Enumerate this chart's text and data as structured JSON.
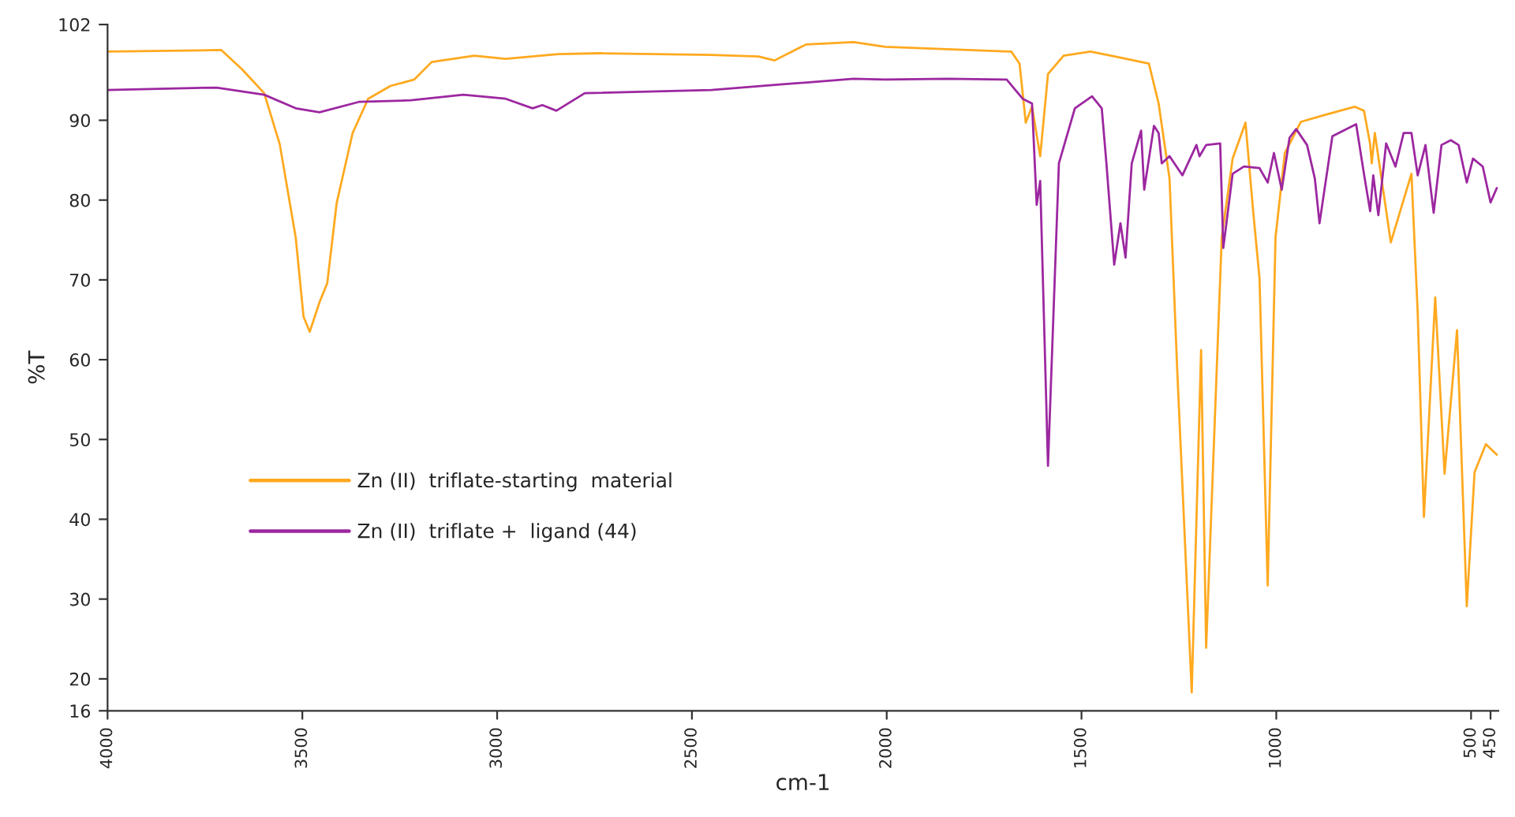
{
  "chart_data": {
    "type": "line",
    "xlabel": "cm-1",
    "ylabel": "%T",
    "xlim": [
      4000,
      430
    ],
    "xticks": [
      4000,
      3500,
      3000,
      2500,
      2000,
      1500,
      1000,
      500,
      450
    ],
    "ylim": [
      16,
      102
    ],
    "yticks": [
      16,
      20,
      30,
      40,
      50,
      60,
      70,
      80,
      90,
      102
    ],
    "grid": false,
    "legend": "lower left",
    "marker": "none",
    "line_style": "solid",
    "series": [
      {
        "name": "Zn (II)  triflate-starting  material",
        "color": "#ffa91f",
        "x": [
          4000,
          3708,
          3655,
          3598,
          3558,
          3517,
          3497,
          3481,
          3456,
          3436,
          3412,
          3371,
          3331,
          3274,
          3213,
          3168,
          3059,
          2978,
          2844,
          2734,
          2450,
          2329,
          2288,
          2207,
          2085,
          2004,
          1680,
          1659,
          1643,
          1627,
          1606,
          1586,
          1546,
          1477,
          1424,
          1327,
          1302,
          1274,
          1254,
          1217,
          1193,
          1180,
          1140,
          1112,
          1079,
          1059,
          1043,
          1022,
          1002,
          978,
          937,
          880,
          799,
          775,
          759,
          755,
          747,
          706,
          653,
          637,
          621,
          592,
          568,
          536,
          511,
          491,
          462,
          434
        ],
        "values": [
          98.6,
          98.8,
          96.4,
          93.4,
          87.0,
          75.3,
          65.4,
          63.5,
          67.2,
          69.6,
          79.6,
          88.4,
          92.7,
          94.3,
          95.1,
          97.3,
          98.1,
          97.7,
          98.3,
          98.4,
          98.2,
          98.0,
          97.5,
          99.5,
          99.8,
          99.2,
          98.6,
          97.1,
          89.7,
          91.7,
          85.5,
          95.8,
          98.1,
          98.6,
          98.1,
          97.1,
          92.1,
          82.7,
          58.4,
          18.3,
          61.2,
          23.9,
          75.3,
          85.2,
          89.7,
          78.4,
          70.2,
          31.7,
          75.3,
          85.9,
          89.8,
          90.6,
          91.7,
          91.2,
          87.0,
          84.6,
          88.4,
          74.7,
          83.3,
          65.9,
          40.3,
          67.8,
          45.7,
          63.7,
          29.1,
          45.9,
          49.4,
          48.1
        ]
      },
      {
        "name": "Zn (II)  triflate +  ligand (44)",
        "color": "#9c27a0",
        "x": [
          4000,
          3720,
          3598,
          3517,
          3456,
          3355,
          3221,
          3087,
          2978,
          2909,
          2884,
          2848,
          2775,
          2450,
          2268,
          2085,
          2004,
          1842,
          1692,
          1651,
          1627,
          1615,
          1606,
          1586,
          1558,
          1517,
          1473,
          1448,
          1436,
          1416,
          1400,
          1387,
          1371,
          1347,
          1339,
          1314,
          1302,
          1294,
          1274,
          1241,
          1205,
          1197,
          1180,
          1144,
          1136,
          1112,
          1083,
          1043,
          1022,
          1006,
          986,
          966,
          949,
          921,
          901,
          889,
          856,
          828,
          795,
          775,
          759,
          751,
          738,
          718,
          694,
          673,
          653,
          637,
          617,
          596,
          576,
          552,
          532,
          511,
          495,
          470,
          450,
          434
        ],
        "values": [
          93.8,
          94.1,
          93.2,
          91.5,
          91.0,
          92.3,
          92.5,
          93.2,
          92.7,
          91.5,
          91.9,
          91.2,
          93.4,
          93.8,
          94.5,
          95.2,
          95.1,
          95.2,
          95.1,
          92.7,
          92.1,
          79.4,
          82.4,
          46.7,
          84.6,
          91.5,
          93.0,
          91.5,
          84.6,
          71.9,
          77.1,
          72.8,
          84.6,
          88.7,
          81.3,
          89.3,
          88.4,
          84.6,
          85.5,
          83.1,
          86.9,
          85.5,
          86.9,
          87.1,
          74.0,
          83.3,
          84.2,
          84.0,
          82.2,
          85.9,
          81.3,
          87.8,
          88.9,
          86.9,
          82.7,
          77.1,
          88.0,
          88.7,
          89.5,
          83.3,
          78.6,
          83.1,
          78.1,
          87.1,
          84.2,
          88.4,
          88.4,
          83.1,
          86.9,
          78.4,
          86.9,
          87.5,
          86.9,
          82.2,
          85.2,
          84.2,
          79.7,
          81.5
        ]
      }
    ]
  }
}
